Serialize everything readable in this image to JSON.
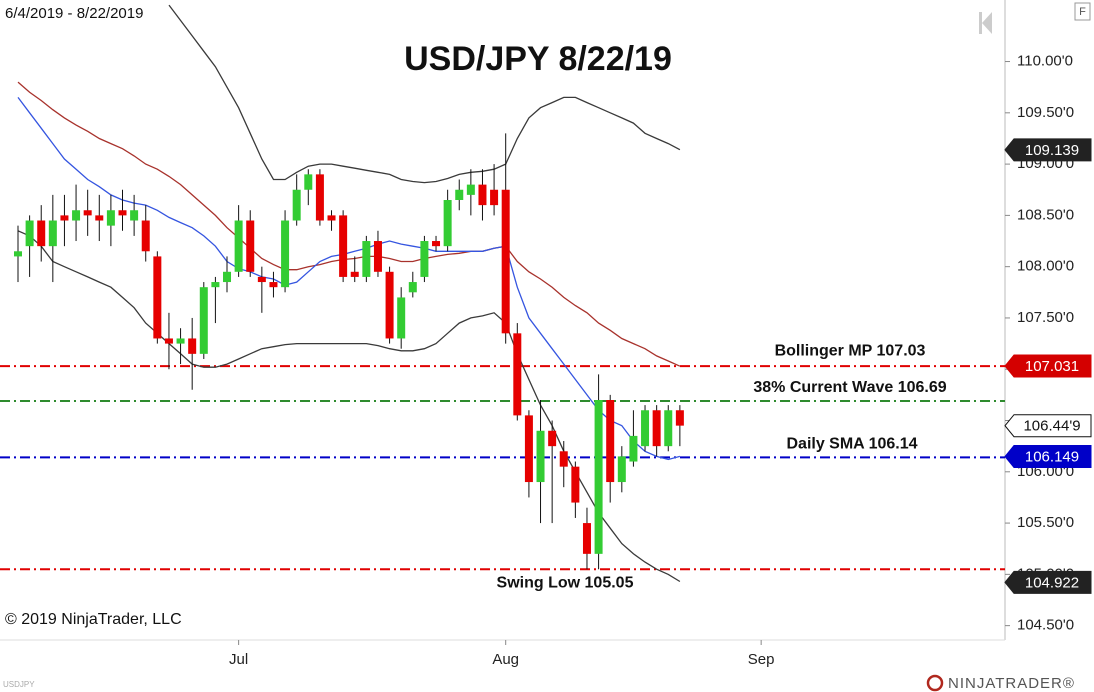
{
  "header": {
    "date_range": "6/4/2019 - 8/22/2019",
    "button": "F",
    "instrument": "USDJPY",
    "copyright": "© 2019 NinjaTrader, LLC",
    "brand": "NINJATRADER®"
  },
  "chart_data": {
    "type": "candlestick",
    "title": "USD/JPY 8/22/19",
    "up_color": "#33cc33",
    "down_color": "#e60000",
    "wick_color": "#111111",
    "open": [
      108.1,
      108.2,
      108.45,
      108.2,
      108.5,
      108.45,
      108.55,
      108.5,
      108.4,
      108.55,
      108.45,
      108.45,
      108.1,
      107.3,
      107.25,
      107.3,
      107.15,
      107.8,
      107.85,
      107.95,
      108.45,
      107.9,
      107.85,
      107.8,
      108.45,
      108.75,
      108.9,
      108.5,
      108.5,
      107.95,
      107.9,
      108.25,
      107.95,
      107.3,
      107.75,
      107.9,
      108.25,
      108.2,
      108.65,
      108.7,
      108.8,
      108.75,
      108.75,
      107.35,
      106.55,
      105.9,
      106.4,
      106.2,
      106.05,
      105.5,
      105.2,
      106.7,
      105.9,
      106.1,
      106.25,
      106.6,
      106.25,
      106.6
    ],
    "high": [
      108.4,
      108.5,
      108.6,
      108.7,
      108.7,
      108.8,
      108.75,
      108.7,
      108.7,
      108.75,
      108.7,
      108.6,
      108.15,
      107.55,
      107.4,
      107.5,
      107.85,
      107.9,
      108.1,
      108.6,
      108.55,
      108.0,
      107.95,
      108.55,
      108.9,
      108.95,
      108.95,
      108.55,
      108.55,
      108.1,
      108.3,
      108.35,
      108.0,
      107.8,
      107.95,
      108.3,
      108.3,
      108.75,
      108.85,
      108.95,
      108.95,
      109.0,
      109.3,
      107.45,
      106.6,
      106.7,
      106.5,
      106.3,
      106.1,
      105.65,
      106.95,
      106.75,
      106.25,
      106.6,
      106.65,
      106.65,
      106.65,
      106.65
    ],
    "low": [
      107.85,
      107.9,
      108.05,
      107.85,
      108.2,
      108.25,
      108.3,
      108.25,
      108.2,
      108.35,
      108.3,
      108.05,
      107.25,
      107.0,
      107.05,
      106.8,
      107.1,
      107.45,
      107.75,
      107.9,
      107.9,
      107.55,
      107.7,
      107.75,
      108.4,
      108.6,
      108.4,
      108.35,
      107.85,
      107.85,
      107.85,
      107.9,
      107.25,
      107.2,
      107.7,
      107.85,
      108.15,
      108.15,
      108.55,
      108.5,
      108.45,
      108.5,
      107.25,
      106.5,
      105.75,
      105.5,
      105.5,
      105.85,
      105.55,
      105.05,
      105.05,
      105.7,
      105.8,
      106.05,
      106.2,
      106.15,
      106.2,
      106.25
    ],
    "close": [
      108.15,
      108.45,
      108.2,
      108.45,
      108.45,
      108.55,
      108.5,
      108.45,
      108.55,
      108.5,
      108.55,
      108.15,
      107.3,
      107.25,
      107.3,
      107.15,
      107.8,
      107.85,
      107.95,
      108.45,
      107.95,
      107.85,
      107.8,
      108.45,
      108.75,
      108.9,
      108.45,
      108.45,
      107.9,
      107.9,
      108.25,
      107.95,
      107.3,
      107.7,
      107.85,
      108.25,
      108.2,
      108.65,
      108.75,
      108.8,
      108.6,
      108.6,
      107.35,
      106.55,
      105.9,
      106.4,
      106.25,
      106.05,
      105.7,
      105.2,
      106.7,
      105.9,
      106.15,
      106.35,
      106.6,
      106.25,
      106.6,
      106.45
    ],
    "series": [
      {
        "color": "#3a3a3a",
        "values": [
          null,
          null,
          null,
          null,
          null,
          null,
          null,
          null,
          null,
          null,
          null,
          null,
          null,
          110.55,
          110.4,
          110.25,
          110.1,
          109.95,
          109.75,
          109.55,
          109.3,
          109.05,
          108.85,
          108.85,
          108.92,
          108.98,
          109.0,
          109.0,
          108.98,
          108.96,
          108.94,
          108.92,
          108.9,
          108.85,
          108.83,
          108.82,
          108.83,
          108.86,
          108.9,
          108.92,
          108.93,
          108.95,
          109.0,
          109.25,
          109.45,
          109.55,
          109.6,
          109.65,
          109.65,
          109.6,
          109.55,
          109.5,
          109.45,
          109.4,
          109.3,
          109.25,
          109.2,
          109.14
        ]
      },
      {
        "color": "#3a3a3a",
        "values": [
          108.35,
          108.3,
          108.2,
          108.05,
          108.0,
          107.95,
          107.9,
          107.85,
          107.8,
          107.7,
          107.6,
          107.45,
          107.35,
          107.25,
          107.15,
          107.05,
          107.02,
          107.02,
          107.05,
          107.1,
          107.15,
          107.2,
          107.22,
          107.24,
          107.25,
          107.25,
          107.25,
          107.25,
          107.25,
          107.25,
          107.25,
          107.23,
          107.2,
          107.18,
          107.18,
          107.2,
          107.25,
          107.35,
          107.45,
          107.5,
          107.52,
          107.55,
          107.45,
          107.15,
          106.9,
          106.65,
          106.45,
          106.2,
          106.0,
          105.8,
          105.6,
          105.45,
          105.3,
          105.2,
          105.12,
          105.05,
          105.0,
          104.93
        ]
      },
      {
        "color": "#a8322c",
        "values": [
          109.8,
          109.7,
          109.62,
          109.53,
          109.45,
          109.38,
          109.32,
          109.25,
          109.2,
          109.15,
          109.08,
          109.0,
          108.95,
          108.88,
          108.8,
          108.7,
          108.6,
          108.5,
          108.38,
          108.28,
          108.18,
          108.08,
          108.02,
          107.97,
          107.97,
          108.0,
          108.02,
          108.05,
          108.07,
          108.08,
          108.1,
          108.1,
          108.08,
          108.05,
          108.05,
          108.08,
          108.1,
          108.12,
          108.13,
          108.15,
          108.15,
          108.18,
          108.2,
          108.05,
          107.95,
          107.88,
          107.8,
          107.7,
          107.62,
          107.55,
          107.45,
          107.38,
          107.3,
          107.25,
          107.2,
          107.13,
          107.08,
          107.03
        ]
      },
      {
        "color": "#3555e0",
        "values": [
          109.65,
          109.5,
          109.35,
          109.2,
          109.05,
          108.95,
          108.85,
          108.78,
          108.7,
          108.65,
          108.62,
          108.6,
          108.55,
          108.48,
          108.43,
          108.38,
          108.3,
          108.2,
          108.05,
          107.98,
          107.95,
          107.9,
          107.88,
          107.82,
          107.85,
          107.95,
          108.05,
          108.1,
          108.12,
          108.15,
          108.18,
          108.22,
          108.25,
          108.22,
          108.2,
          108.18,
          108.15,
          108.15,
          108.15,
          108.15,
          108.15,
          108.18,
          108.2,
          107.8,
          107.5,
          107.35,
          107.2,
          107.05,
          106.9,
          106.75,
          106.6,
          106.5,
          106.45,
          106.3,
          106.2,
          106.15,
          106.12,
          106.15
        ]
      }
    ],
    "hlines": [
      {
        "label": "Bollinger MP 107.03",
        "value": 107.03,
        "color": "#e00000"
      },
      {
        "label": "38% Current Wave 106.69",
        "value": 106.69,
        "color": "#2e8b2e"
      },
      {
        "label": "Daily SMA 106.14",
        "value": 106.14,
        "color": "#0000c8"
      },
      {
        "label": "Swing Low 105.05",
        "value": 105.05,
        "color": "#e00000"
      }
    ],
    "price_markers": [
      {
        "label": "109.139",
        "value": 109.139,
        "color": "#222222",
        "text_color": "#ffffff"
      },
      {
        "label": "107.031",
        "value": 107.031,
        "color": "#d40000",
        "text_color": "#ffffff"
      },
      {
        "label": "106.44'9",
        "value": 106.449,
        "color": "#ffffff",
        "text_color": "#111111"
      },
      {
        "label": "106.149",
        "value": 106.149,
        "color": "#0000c8",
        "text_color": "#ffffff"
      },
      {
        "label": "104.922",
        "value": 104.922,
        "color": "#222222",
        "text_color": "#ffffff"
      }
    ],
    "xlim": [
      -1.55,
      85
    ],
    "xticks": [
      {
        "value": 19,
        "label": "Jul"
      },
      {
        "value": 42,
        "label": "Aug"
      },
      {
        "value": 64,
        "label": "Sep"
      }
    ],
    "ylim": [
      104.36,
      110.6
    ],
    "yticks": [
      {
        "value": 110,
        "label": "110.00'0"
      },
      {
        "value": 109.5,
        "label": "109.50'0"
      },
      {
        "value": 109,
        "label": "109.00'0"
      },
      {
        "value": 108.5,
        "label": "108.50'0"
      },
      {
        "value": 108,
        "label": "108.00'0"
      },
      {
        "value": 107.5,
        "label": "107.50'0"
      },
      {
        "value": 107,
        "label": "107.00'0"
      },
      {
        "value": 106.5,
        "label": "106.50'0"
      },
      {
        "value": 106,
        "label": "106.00'0"
      },
      {
        "value": 105.5,
        "label": "105.50'0"
      },
      {
        "value": 105,
        "label": "105.00'0"
      },
      {
        "value": 104.5,
        "label": "104.50'0"
      }
    ]
  }
}
